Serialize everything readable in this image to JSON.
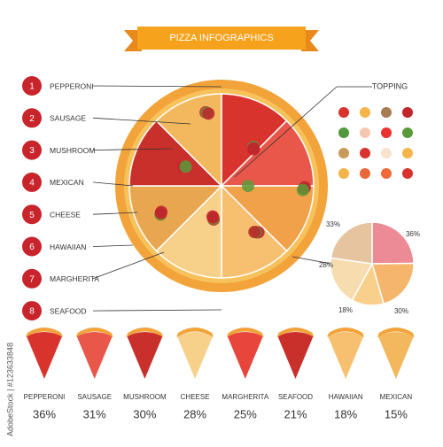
{
  "title": "PIZZA INFOGRAPHICS",
  "legend": [
    "PEPPERONI",
    "SAUSAGE",
    "MUSHROOM",
    "MEXICAN",
    "CHEESE",
    "HAWAIIAN",
    "MARGHERITA",
    "SEAFOOD"
  ],
  "numbers": [
    "1",
    "2",
    "3",
    "4",
    "5",
    "6",
    "7",
    "8"
  ],
  "topping_label": "TOPPING",
  "pie": {
    "values": [
      36,
      30,
      18,
      28,
      33
    ],
    "value_labels": [
      "36%",
      "30%",
      "18%",
      "28%",
      "33%"
    ],
    "colors": [
      "#ec8a95",
      "#f6b56c",
      "#f9cf8c",
      "#f6dcae",
      "#e6c4a0"
    ]
  },
  "bottom": [
    {
      "name": "PEPPERONI",
      "percent": "36%"
    },
    {
      "name": "SAUSAGE",
      "percent": "31%"
    },
    {
      "name": "MUSHROOM",
      "percent": "30%"
    },
    {
      "name": "CHEESE",
      "percent": "28%"
    },
    {
      "name": "MARGHERITA",
      "percent": "25%"
    },
    {
      "name": "SEAFOOD",
      "percent": "21%"
    },
    {
      "name": "HAWAIIAN",
      "percent": "18%"
    },
    {
      "name": "MEXICAN",
      "percent": "15%"
    }
  ],
  "watermark": "AdobeStock | #123633848"
}
